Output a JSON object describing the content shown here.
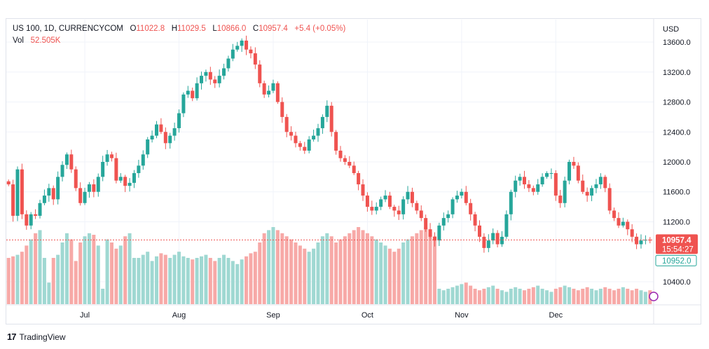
{
  "legend": {
    "symbol": "US 100, 1D, CURRENCYCOM",
    "o_label": "O",
    "o": "11022.8",
    "h_label": "H",
    "h": "11029.5",
    "l_label": "L",
    "l": "10866.0",
    "c_label": "C",
    "c": "10957.4",
    "change": "+5.4 (+0.05%)",
    "vol_label": "Vol",
    "vol_value": "52.505K"
  },
  "footer": {
    "brand": "TradingView",
    "logo": "17"
  },
  "colors": {
    "up": "#26a69a",
    "down": "#ef5350",
    "up_vol": "#9fd8d2",
    "down_vol": "#f7a9a7",
    "grid": "#f0f3fa",
    "axis_text": "#131722"
  },
  "chart_data": {
    "type": "candlestick",
    "currency": "USD",
    "price_axis_ticks": [
      "13600.0",
      "13200.0",
      "12800.0",
      "12400.0",
      "12000.0",
      "11600.0",
      "11200.0",
      "10400.0"
    ],
    "price_axis_values": [
      13600,
      13200,
      12800,
      12400,
      12000,
      11600,
      11200,
      10400
    ],
    "time_axis_ticks": [
      "Jul",
      "Aug",
      "Sep",
      "Oct",
      "Nov",
      "Dec"
    ],
    "time_axis_index": [
      17,
      38,
      59,
      80,
      101,
      122
    ],
    "last_price_label": "10957.4",
    "countdown_label": "15:54:27",
    "secondary_price_label": "10952.0",
    "last_price": 10957.4,
    "secondary_price": 10952.0,
    "ylim": [
      10100,
      13900
    ],
    "series_close": [
      11700,
      11280,
      11900,
      11300,
      11150,
      11300,
      11280,
      11450,
      11550,
      11650,
      11500,
      11800,
      11960,
      12100,
      11900,
      11650,
      11450,
      11600,
      11700,
      11600,
      11800,
      12000,
      12100,
      12050,
      11750,
      11800,
      11680,
      11720,
      11850,
      11950,
      12100,
      12300,
      12350,
      12500,
      12400,
      12250,
      12350,
      12450,
      12650,
      12900,
      12950,
      12850,
      13050,
      13150,
      13200,
      13100,
      13050,
      13150,
      13250,
      13380,
      13500,
      13550,
      13620,
      13500,
      13450,
      13300,
      13050,
      12900,
      12950,
      13050,
      12800,
      12600,
      12400,
      12350,
      12250,
      12200,
      12150,
      12300,
      12350,
      12450,
      12600,
      12750,
      12400,
      12150,
      12050,
      12000,
      11950,
      11850,
      11700,
      11550,
      11400,
      11350,
      11400,
      11500,
      11550,
      11400,
      11350,
      11300,
      11500,
      11600,
      11450,
      11350,
      11250,
      11100,
      11000,
      10950,
      11150,
      11250,
      11300,
      11500,
      11550,
      11600,
      11450,
      11300,
      11150,
      11000,
      10850,
      10950,
      11050,
      10900,
      11000,
      11300,
      11600,
      11750,
      11800,
      11700,
      11650,
      11600,
      11700,
      11800,
      11850,
      11850,
      11550,
      11450,
      11750,
      12000,
      11950,
      11750,
      11600,
      11550,
      11650,
      11700,
      11800,
      11650,
      11350,
      11250,
      11150,
      11200,
      11100,
      11000,
      10900,
      10950,
      10960,
      10957
    ],
    "series_volume": [
      0.3,
      0.31,
      0.32,
      0.34,
      0.38,
      0.42,
      0.46,
      0.48,
      0.3,
      0.14,
      0.3,
      0.32,
      0.4,
      0.46,
      0.42,
      0.28,
      0.4,
      0.44,
      0.46,
      0.45,
      0.38,
      0.1,
      0.42,
      0.4,
      0.36,
      0.38,
      0.44,
      0.46,
      0.3,
      0.3,
      0.32,
      0.34,
      0.28,
      0.31,
      0.33,
      0.32,
      0.3,
      0.32,
      0.34,
      0.31,
      0.3,
      0.29,
      0.3,
      0.31,
      0.32,
      0.3,
      0.28,
      0.3,
      0.32,
      0.3,
      0.28,
      0.26,
      0.29,
      0.31,
      0.33,
      0.34,
      0.4,
      0.46,
      0.48,
      0.5,
      0.48,
      0.46,
      0.44,
      0.42,
      0.4,
      0.38,
      0.36,
      0.34,
      0.36,
      0.4,
      0.44,
      0.46,
      0.44,
      0.4,
      0.42,
      0.44,
      0.46,
      0.48,
      0.5,
      0.48,
      0.46,
      0.44,
      0.42,
      0.4,
      0.38,
      0.36,
      0.34,
      0.36,
      0.4,
      0.42,
      0.44,
      0.46,
      0.48,
      0.5,
      0.46,
      0.44,
      0.1,
      0.09,
      0.1,
      0.11,
      0.12,
      0.13,
      0.14,
      0.12,
      0.1,
      0.09,
      0.1,
      0.11,
      0.12,
      0.1,
      0.09,
      0.08,
      0.1,
      0.11,
      0.1,
      0.09,
      0.1,
      0.11,
      0.12,
      0.1,
      0.09,
      0.08,
      0.1,
      0.11,
      0.12,
      0.11,
      0.1,
      0.09,
      0.1,
      0.11,
      0.1,
      0.09,
      0.1,
      0.11,
      0.1,
      0.09,
      0.1,
      0.11,
      0.1,
      0.09,
      0.1,
      0.09,
      0.08,
      0.09
    ]
  }
}
